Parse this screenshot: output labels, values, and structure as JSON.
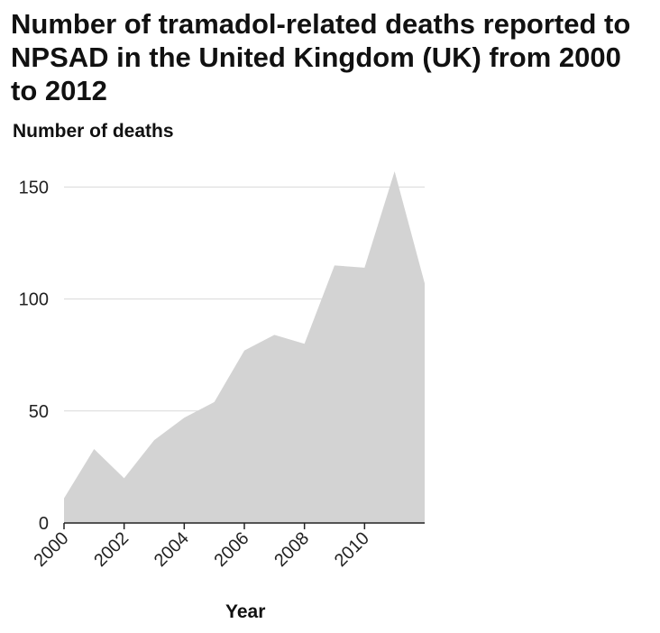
{
  "chart_data": {
    "type": "area",
    "title": "Number of tramadol-related deaths reported to NPSAD in the United Kingdom (UK) from 2000 to 2012",
    "ylabel": "Number of deaths",
    "xlabel": "Year",
    "x": [
      2000,
      2001,
      2002,
      2003,
      2004,
      2005,
      2006,
      2007,
      2008,
      2009,
      2010,
      2011,
      2012
    ],
    "values": [
      11,
      33,
      20,
      37,
      47,
      54,
      77,
      84,
      80,
      115,
      114,
      157,
      107
    ],
    "xlim": [
      2000,
      2012
    ],
    "ylim": [
      0,
      157
    ],
    "yticks": [
      0,
      50,
      100,
      150
    ],
    "xticks": [
      2000,
      2002,
      2004,
      2006,
      2008,
      2010
    ],
    "grid": "horizontal",
    "fill_color": "#d3d3d3",
    "grid_color": "#d9d9d9",
    "axis_color": "#222222"
  }
}
